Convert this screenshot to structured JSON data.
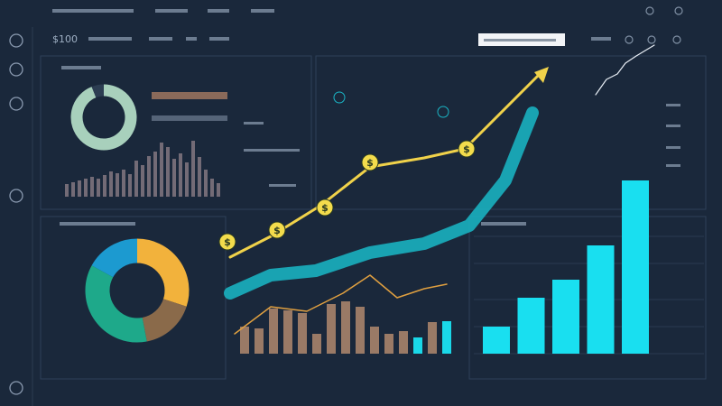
{
  "header": {
    "logo": "$100"
  },
  "coin_symbol": "$",
  "charts": {
    "growth_line": {
      "color": "#f0d24a",
      "x": [
        255,
        300,
        355,
        410,
        470,
        515,
        600
      ],
      "y": [
        115,
        138,
        172,
        215,
        225,
        235,
        320
      ]
    },
    "wave": {
      "color": "#1ab8c8",
      "x": [
        255,
        300,
        350,
        410,
        470,
        520,
        560,
        590
      ],
      "y": [
        75,
        95,
        100,
        120,
        130,
        150,
        200,
        275
      ]
    },
    "orange_line": {
      "color": "#e0a040",
      "x": [
        260,
        300,
        340,
        380,
        410,
        440,
        470,
        495
      ],
      "y": [
        30,
        60,
        55,
        75,
        95,
        70,
        80,
        85
      ]
    },
    "trend_line": {
      "color": "#e8eef5",
      "x": [
        660,
        672,
        684,
        693,
        705,
        725
      ],
      "y": [
        295,
        312,
        318,
        330,
        338,
        350
      ]
    },
    "right_bars": {
      "color": "#19dff0",
      "values": [
        30,
        62,
        82,
        120,
        192
      ]
    },
    "donut": {
      "values": [
        30,
        17,
        36,
        17
      ],
      "colors": [
        "#f2b23c",
        "#8a6a4a",
        "#1ea98a",
        "#1c9ad0"
      ]
    },
    "ring": {
      "values": [
        94,
        6
      ],
      "colors": [
        "#a8d0bc",
        "#2c3d52"
      ]
    },
    "mini_bars": {
      "color": "#8a7c86",
      "values": [
        14,
        16,
        18,
        20,
        22,
        20,
        24,
        28,
        26,
        30,
        25,
        40,
        35,
        45,
        50,
        60,
        55,
        42,
        48,
        38,
        62,
        44,
        30,
        20,
        15
      ]
    },
    "mid_bars": {
      "values": [
        30,
        28,
        50,
        48,
        45,
        22,
        55,
        58,
        52,
        30,
        22,
        25,
        18,
        35,
        36
      ],
      "colors": [
        "#9a7a66",
        "#9a7a66",
        "#9a7a66",
        "#9a7a66",
        "#9a7a66",
        "#9a7a66",
        "#9a7a66",
        "#9a7a66",
        "#9a7a66",
        "#9a7a66",
        "#9a7a66",
        "#9a7a66",
        "#1ad8e8",
        "#9a7a66",
        "#1ad8e8"
      ]
    }
  }
}
